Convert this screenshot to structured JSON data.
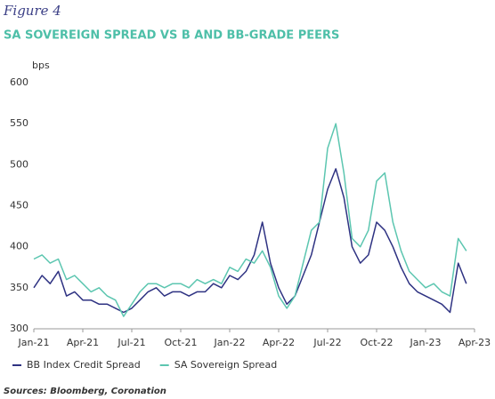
{
  "figure_label": "Figure 4",
  "chart_data": {
    "type": "line",
    "title": "SA SOVEREIGN SPREAD VS B AND BB-GRADE PEERS",
    "y_label": "bps",
    "source": "Sources: Bloomberg, Coronation",
    "categories": [
      "Jan-21",
      null,
      null,
      null,
      null,
      null,
      "Apr-21",
      null,
      null,
      null,
      null,
      null,
      "Jul-21",
      null,
      null,
      null,
      null,
      null,
      "Oct-21",
      null,
      null,
      null,
      null,
      null,
      "Jan-22",
      null,
      null,
      null,
      null,
      null,
      "Apr-22",
      null,
      null,
      null,
      null,
      null,
      "Jul-22",
      null,
      null,
      null,
      null,
      null,
      "Oct-22",
      null,
      null,
      null,
      null,
      null,
      "Jan-23",
      null,
      null,
      null,
      null,
      null,
      "Apr-23"
    ],
    "series": [
      {
        "name": "BB Index Credit Spread",
        "color": "#2e3282",
        "values": [
          350,
          365,
          355,
          370,
          340,
          345,
          335,
          335,
          330,
          330,
          325,
          320,
          325,
          335,
          345,
          350,
          340,
          345,
          345,
          340,
          345,
          345,
          355,
          350,
          365,
          360,
          370,
          390,
          430,
          380,
          350,
          330,
          340,
          365,
          390,
          430,
          470,
          495,
          460,
          400,
          380,
          390,
          430,
          420,
          400,
          375,
          355,
          345,
          340,
          335,
          330,
          320,
          380,
          355,
          null
        ]
      },
      {
        "name": "SA Sovereign Spread",
        "color": "#5cc6b0",
        "values": [
          385,
          390,
          380,
          385,
          360,
          365,
          355,
          345,
          350,
          340,
          335,
          315,
          330,
          345,
          355,
          355,
          350,
          355,
          355,
          350,
          360,
          355,
          360,
          355,
          375,
          370,
          385,
          380,
          395,
          375,
          340,
          325,
          340,
          380,
          420,
          430,
          520,
          550,
          490,
          410,
          400,
          420,
          480,
          490,
          430,
          395,
          370,
          360,
          350,
          355,
          345,
          340,
          410,
          395,
          null
        ]
      }
    ],
    "ylim": [
      300,
      600
    ],
    "yticks": [
      300,
      350,
      400,
      450,
      500,
      550,
      600
    ],
    "legend": "bottom-left"
  }
}
